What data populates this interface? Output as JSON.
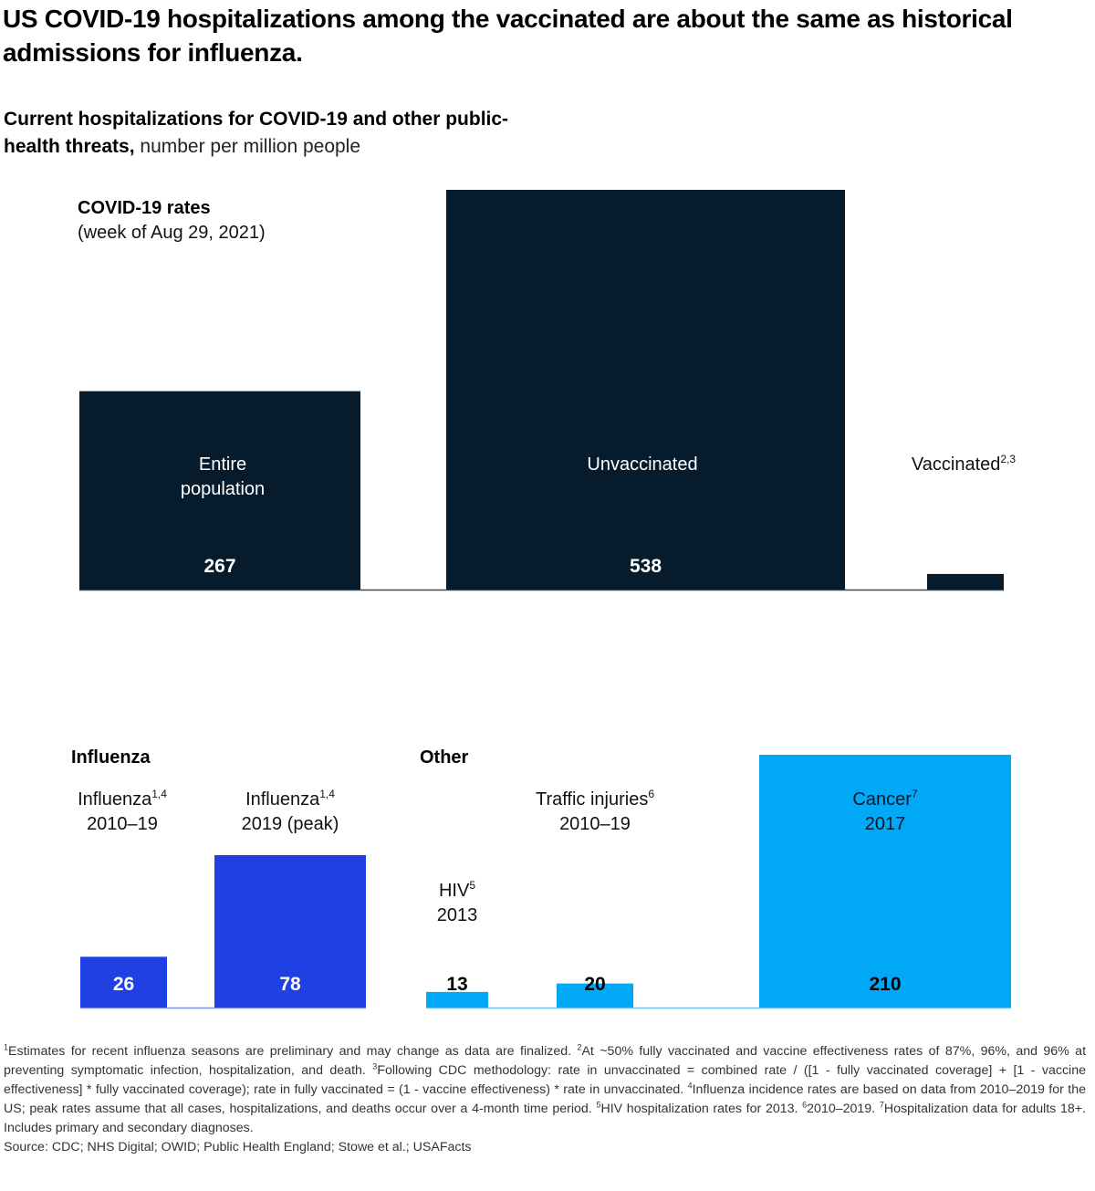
{
  "title": "US COVID-19 hospitalizations among the vaccinated are about the same as historical admissions for influenza.",
  "subtitle": {
    "bold": "Current hospitalizations for COVID-19 and other public-health threats,",
    "unit": "number per million people"
  },
  "colors": {
    "covid": "#061c2d",
    "influenza": "#2140e4",
    "other": "#00a8f6",
    "baseline_covid": "#3b4a57",
    "baseline_flu": "#7f8ff0",
    "baseline_other": "#6cc7f5"
  },
  "chart_data": [
    {
      "type": "bar",
      "group": "covid",
      "title": "COVID-19 rates",
      "subtitle": "(week of Aug 29, 2021)",
      "unit": "number per million people",
      "categories": [
        {
          "label": "Entire population",
          "lines": [
            "Entire",
            "population"
          ],
          "sup": "",
          "value": 267,
          "value_label": "267"
        },
        {
          "label": "Unvaccinated",
          "lines": [
            "Unvaccinated"
          ],
          "sup": "",
          "value": 538,
          "value_label": "538"
        },
        {
          "label": "Vaccinated",
          "lines": [
            "Vaccinated"
          ],
          "sup": "2,3",
          "value": 21,
          "value_label": "21"
        }
      ]
    },
    {
      "type": "bar",
      "group": "influenza",
      "title": "Influenza",
      "unit": "number per million people",
      "categories": [
        {
          "label": "Influenza 2010–19",
          "lines": [
            "Influenza",
            "2010–19"
          ],
          "sup": "1,4",
          "value": 26,
          "value_label": "26"
        },
        {
          "label": "Influenza 2019 (peak)",
          "lines": [
            "Influenza",
            "2019 (peak)"
          ],
          "sup": "1,4",
          "value": 78,
          "value_label": "78"
        }
      ]
    },
    {
      "type": "bar",
      "group": "other",
      "title": "Other",
      "unit": "number per million people",
      "categories": [
        {
          "label": "HIV 2013",
          "lines": [
            "HIV",
            "2013"
          ],
          "sup": "5",
          "value": 13,
          "value_label": "13"
        },
        {
          "label": "Traffic injuries 2010–19",
          "lines": [
            "Traffic injuries",
            "2010–19"
          ],
          "sup": "6",
          "value": 20,
          "value_label": "20"
        },
        {
          "label": "Cancer 2017",
          "lines": [
            "Cancer",
            "2017"
          ],
          "sup": "7",
          "value": 210,
          "value_label": "210"
        }
      ]
    }
  ],
  "footnotes": [
    {
      "sup": "1",
      "text": "Estimates for recent influenza seasons are preliminary and may change as data are finalized. "
    },
    {
      "sup": "2",
      "text": "At ~50% fully vaccinated and vaccine effectiveness rates of 87%, 96%, and 96% at preventing symptomatic infection, hospitalization, and death. "
    },
    {
      "sup": "3",
      "text": "Following CDC methodology: rate in unvaccinated = combined rate / ([1 - fully vaccinated coverage] + [1 - vaccine effectiveness] * fully vaccinated coverage); rate in fully vaccinated = (1 - vaccine effectiveness) * rate in unvaccinated. "
    },
    {
      "sup": "4",
      "text": "Influenza incidence rates are based on data from 2010–2019 for the US; peak rates assume that all cases, hospitalizations, and deaths occur over a 4-month time period. "
    },
    {
      "sup": "5",
      "text": "HIV hospitalization rates for 2013. "
    },
    {
      "sup": "6",
      "text": "2010–2019. "
    },
    {
      "sup": "7",
      "text": "Hospitalization data for adults 18+. Includes primary and secondary diagnoses."
    }
  ],
  "source": "Source: CDC; NHS Digital; OWID; Public Health England; Stowe et al.; USAFacts"
}
